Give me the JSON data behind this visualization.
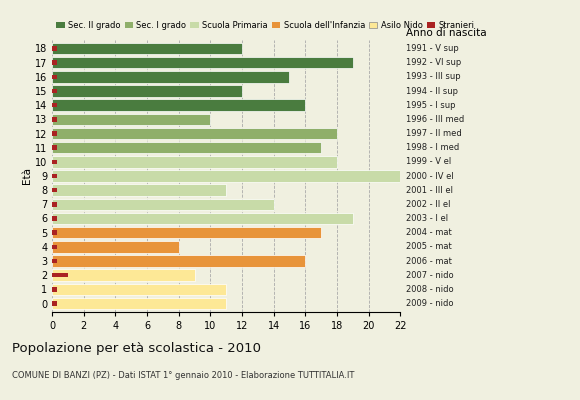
{
  "ages": [
    0,
    1,
    2,
    3,
    4,
    5,
    6,
    7,
    8,
    9,
    10,
    11,
    12,
    13,
    14,
    15,
    16,
    17,
    18
  ],
  "values": [
    11,
    11,
    9,
    16,
    8,
    17,
    19,
    14,
    11,
    22,
    18,
    17,
    18,
    10,
    16,
    12,
    15,
    19,
    12
  ],
  "stranieri": [
    0.3,
    0.3,
    1.0,
    0.3,
    0.3,
    0.3,
    0.3,
    0.3,
    0.3,
    0.3,
    0.3,
    0.3,
    0.3,
    0.3,
    0.3,
    0.3,
    0.3,
    0.3,
    0.3
  ],
  "bar_colors": [
    "#fde896",
    "#fde896",
    "#fde896",
    "#e8943a",
    "#e8943a",
    "#e8943a",
    "#c8dba8",
    "#c8dba8",
    "#c8dba8",
    "#c8dba8",
    "#c8dba8",
    "#8faf6a",
    "#8faf6a",
    "#8faf6a",
    "#4a7c3f",
    "#4a7c3f",
    "#4a7c3f",
    "#4a7c3f",
    "#4a7c3f"
  ],
  "right_labels": [
    "2009 - nido",
    "2008 - nido",
    "2007 - nido",
    "2006 - mat",
    "2005 - mat",
    "2004 - mat",
    "2003 - I el",
    "2002 - II el",
    "2001 - III el",
    "2000 - IV el",
    "1999 - V el",
    "1998 - I med",
    "1997 - II med",
    "1996 - III med",
    "1995 - I sup",
    "1994 - II sup",
    "1993 - III sup",
    "1992 - VI sup",
    "1991 - V sup"
  ],
  "legend_labels": [
    "Sec. II grado",
    "Sec. I grado",
    "Scuola Primaria",
    "Scuola dell'Infanzia",
    "Asilo Nido",
    "Stranieri"
  ],
  "legend_colors": [
    "#4a7c3f",
    "#8faf6a",
    "#c8dba8",
    "#e8943a",
    "#fde896",
    "#aa2222"
  ],
  "title": "Popolazione per età scolastica - 2010",
  "subtitle": "COMUNE DI BANZI (PZ) - Dati ISTAT 1° gennaio 2010 - Elaborazione TUTTITALIA.IT",
  "ylabel_left": "Età",
  "ylabel_right": "Anno di nascita",
  "xlim": [
    0,
    22
  ],
  "xticks": [
    0,
    2,
    4,
    6,
    8,
    10,
    12,
    14,
    16,
    18,
    20,
    22
  ],
  "background_color": "#f0f0e0",
  "stranieri_color": "#aa2222",
  "bar_height": 0.82
}
